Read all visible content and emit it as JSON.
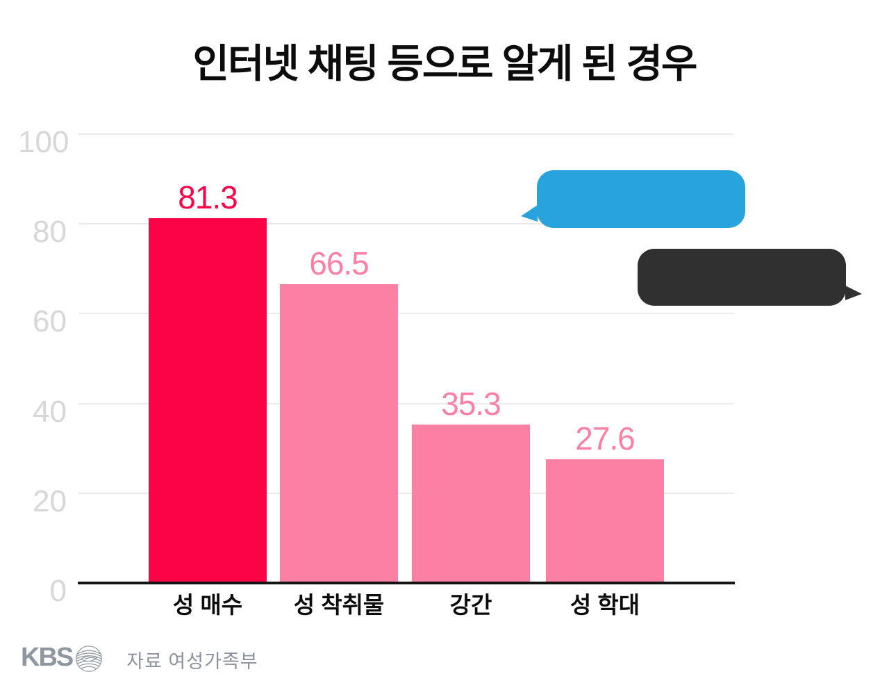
{
  "title": "인터넷 채팅 등으로 알게 된 경우",
  "chart_data": {
    "type": "bar",
    "title": "인터넷 채팅 등으로 알게 된 경우",
    "categories": [
      "성 매수",
      "성 착취물",
      "강간",
      "성 학대"
    ],
    "values": [
      81.3,
      66.5,
      35.3,
      27.6
    ],
    "value_labels": [
      "81.3",
      "66.5",
      "35.3",
      "27.6"
    ],
    "bar_colors": [
      "#fc0246",
      "#fc80a4",
      "#fc80a4",
      "#fc80a4"
    ],
    "xlabel": "",
    "ylabel": "",
    "ylim": [
      0,
      100
    ],
    "yticks": [
      0,
      20,
      40,
      60,
      80,
      100
    ],
    "grid": true,
    "legend": "none"
  },
  "annotations": {
    "chat_bubbles": [
      {
        "name": "blue-chat-bubble",
        "color": "#29a3dc",
        "tail_direction": "left",
        "text": ""
      },
      {
        "name": "dark-chat-bubble",
        "color": "#303030",
        "tail_direction": "right",
        "text": ""
      }
    ]
  },
  "colors": {
    "highlight_bar": "#fc0246",
    "regular_bar": "#fc80a4",
    "gridline": "#eaeaea",
    "axis_line": "#141414",
    "y_tick_text": "#d7d7d7",
    "footer_gray": "#8e96a0"
  },
  "footer": {
    "logo_text": "KBS",
    "source": "자료 여성가족부"
  }
}
